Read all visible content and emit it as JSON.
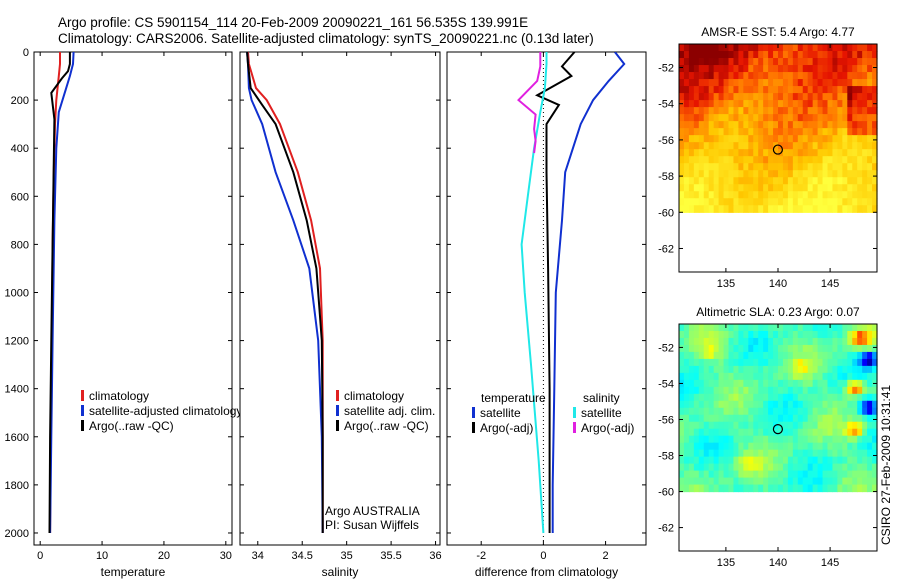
{
  "header": {
    "line1": "Argo profile: CS 5901154_114 20-Feb-2009 20090221_161 56.535S 139.991E",
    "line2": "Climatology: CARS2006. Satellite-adjusted climatology: synTS_20090221.nc (0.13d later)"
  },
  "side_text": "CSIRO 27-Feb-2009 10:31:41",
  "colors": {
    "climatology": "#e02020",
    "satellite": "#1030d0",
    "argo": "#000000",
    "sat_salinity": "#20e8e8",
    "argo_salinity": "#e020e0"
  },
  "chart_data": [
    {
      "id": "temperature",
      "type": "line",
      "xlabel": "temperature",
      "ylabel": "",
      "xlim": [
        -1,
        31
      ],
      "ylim": [
        2050,
        0
      ],
      "xticks": [
        0,
        10,
        20,
        30
      ],
      "xtick_labels": [
        "0",
        "10",
        "20",
        "30"
      ],
      "yticks": [
        0,
        200,
        400,
        600,
        800,
        1000,
        1200,
        1400,
        1600,
        1800,
        2000
      ],
      "ytick_labels": [
        "0",
        "200",
        "400",
        "600",
        "800",
        "1000",
        "1200",
        "1400",
        "1600",
        "1800",
        "2000"
      ],
      "series": [
        {
          "name": "climatology",
          "color": "#e02020",
          "x": [
            3.2,
            3.2,
            3.0,
            2.6,
            2.4,
            2.2,
            2.0,
            1.9,
            1.7,
            1.6
          ],
          "y": [
            0,
            50,
            100,
            200,
            300,
            500,
            800,
            1200,
            1600,
            2000
          ]
        },
        {
          "name": "satellite-adjusted climatology",
          "color": "#1030d0",
          "x": [
            5.4,
            5.3,
            4.8,
            4.2,
            3.0,
            2.6,
            2.3,
            2.0,
            1.8,
            1.6
          ],
          "y": [
            0,
            50,
            100,
            150,
            250,
            400,
            700,
            1200,
            1600,
            2000
          ]
        },
        {
          "name": "Argo(..raw -QC)",
          "color": "#000000",
          "x": [
            4.8,
            4.8,
            4.5,
            3.5,
            1.8,
            2.3,
            2.2,
            2.0,
            1.8,
            1.6,
            1.5
          ],
          "y": [
            0,
            50,
            80,
            110,
            170,
            280,
            450,
            800,
            1200,
            1600,
            2000
          ]
        }
      ],
      "legend": [
        {
          "label": "climatology",
          "color": "#e02020"
        },
        {
          "label": "satellite-adjusted climatology",
          "color": "#1030d0"
        },
        {
          "label": "Argo(..raw -QC)",
          "color": "#000000"
        }
      ]
    },
    {
      "id": "salinity",
      "type": "line",
      "xlabel": "salinity",
      "ylabel": "",
      "xlim": [
        33.8,
        36.05
      ],
      "ylim": [
        2050,
        0
      ],
      "xticks": [
        34,
        34.5,
        35,
        35.5,
        36
      ],
      "xtick_labels": [
        "34",
        "34.5",
        "35",
        "35.5",
        "36"
      ],
      "yticks": [
        0,
        200,
        400,
        600,
        800,
        1000,
        1200,
        1400,
        1600,
        1800,
        2000
      ],
      "series": [
        {
          "name": "climatology",
          "color": "#e02020",
          "x": [
            33.89,
            33.9,
            33.98,
            34.1,
            34.25,
            34.45,
            34.6,
            34.7,
            34.73,
            34.73,
            34.73
          ],
          "y": [
            0,
            50,
            150,
            200,
            300,
            500,
            700,
            900,
            1200,
            1600,
            2000
          ]
        },
        {
          "name": "satellite adj. clim.",
          "color": "#1030d0",
          "x": [
            33.88,
            33.89,
            33.9,
            33.93,
            34.05,
            34.2,
            34.4,
            34.58,
            34.68,
            34.72,
            34.73
          ],
          "y": [
            0,
            50,
            150,
            200,
            300,
            500,
            700,
            900,
            1200,
            1600,
            2000
          ]
        },
        {
          "name": "Argo(..raw -QC)",
          "color": "#000000",
          "x": [
            33.88,
            33.89,
            33.92,
            34.05,
            34.2,
            34.4,
            34.55,
            34.66,
            34.72,
            34.73,
            34.73
          ],
          "y": [
            0,
            50,
            150,
            220,
            300,
            500,
            700,
            900,
            1200,
            1600,
            2000
          ]
        }
      ],
      "legend": [
        {
          "label": "climatology",
          "color": "#e02020"
        },
        {
          "label": "satellite adj. clim.",
          "color": "#1030d0"
        },
        {
          "label": "Argo(..raw -QC)",
          "color": "#000000"
        }
      ],
      "annotation": [
        "Argo AUSTRALIA",
        "PI: Susan Wijffels"
      ]
    },
    {
      "id": "difference",
      "type": "line",
      "xlabel": "difference from climatology",
      "ylabel": "",
      "xlim": [
        -3.1,
        3.3
      ],
      "ylim": [
        2050,
        0
      ],
      "xticks": [
        -2,
        0,
        2
      ],
      "xtick_labels": [
        "-2",
        "0",
        "2"
      ],
      "yticks": [
        0,
        200,
        400,
        600,
        800,
        1000,
        1200,
        1400,
        1600,
        1800,
        2000
      ],
      "series": [
        {
          "name": "temperature satellite",
          "color": "#1030d0",
          "x": [
            2.3,
            2.6,
            2.1,
            1.6,
            1.2,
            0.7,
            0.6,
            0.4,
            0.35,
            0.3,
            0.3
          ],
          "y": [
            0,
            50,
            120,
            200,
            300,
            500,
            700,
            1000,
            1400,
            1800,
            2000
          ]
        },
        {
          "name": "temperature Argo(-adj)",
          "color": "#000000",
          "x": [
            1.0,
            0.6,
            0.9,
            -0.2,
            0.5,
            0.1,
            0.1,
            0.15,
            0.2,
            0.2,
            0.2
          ],
          "y": [
            0,
            60,
            100,
            180,
            220,
            300,
            500,
            900,
            1400,
            1800,
            2000
          ]
        },
        {
          "name": "salinity satellite",
          "color": "#20e8e8",
          "x": [
            0.1,
            0.1,
            0.05,
            -0.1,
            -0.3,
            -0.5,
            -0.7,
            -0.6,
            -0.4,
            -0.15,
            0.0
          ],
          "y": [
            0,
            50,
            150,
            250,
            400,
            600,
            800,
            1000,
            1300,
            1700,
            2000
          ]
        },
        {
          "name": "salinity Argo(-adj)",
          "color": "#e020e0",
          "x": [
            -0.1,
            -0.1,
            -0.2,
            -0.8,
            -0.25,
            -0.3,
            -0.25,
            -0.3
          ],
          "y": [
            0,
            60,
            120,
            200,
            260,
            320,
            370,
            420
          ]
        }
      ],
      "legend_temperature_title": "temperature",
      "legend_salinity_title": "salinity",
      "legend": [
        {
          "label": "satellite",
          "color": "#1030d0"
        },
        {
          "label": "Argo(-adj)",
          "color": "#000000"
        },
        {
          "label": "satellite",
          "color": "#20e8e8"
        },
        {
          "label": "Argo(-adj)",
          "color": "#e020e0"
        }
      ]
    },
    {
      "id": "sst_map",
      "type": "heatmap",
      "title": "AMSR-E SST: 5.4 Argo: 4.77",
      "xlim": [
        130.5,
        149.5
      ],
      "ylim": [
        -63.3,
        -50.7
      ],
      "data_ylim": [
        -60,
        -50.7
      ],
      "xticks": [
        135,
        140,
        145
      ],
      "xtick_labels": [
        "135",
        "140",
        "145"
      ],
      "yticks": [
        -52,
        -54,
        -56,
        -58,
        -60,
        -62
      ],
      "ytick_labels": [
        "-52",
        "-54",
        "-56",
        "-58",
        "-60",
        "-62"
      ],
      "marker": {
        "lon": 139.991,
        "lat": -56.535
      }
    },
    {
      "id": "sla_map",
      "type": "heatmap",
      "title": "Altimetric SLA: 0.23 Argo: 0.07",
      "xlim": [
        130.5,
        149.5
      ],
      "ylim": [
        -63.3,
        -50.7
      ],
      "data_ylim": [
        -60,
        -50.7
      ],
      "xticks": [
        135,
        140,
        145
      ],
      "xtick_labels": [
        "135",
        "140",
        "145"
      ],
      "yticks": [
        -52,
        -54,
        -56,
        -58,
        -60,
        -62
      ],
      "ytick_labels": [
        "-52",
        "-54",
        "-56",
        "-58",
        "-60",
        "-62"
      ],
      "marker": {
        "lon": 139.991,
        "lat": -56.535
      }
    }
  ]
}
